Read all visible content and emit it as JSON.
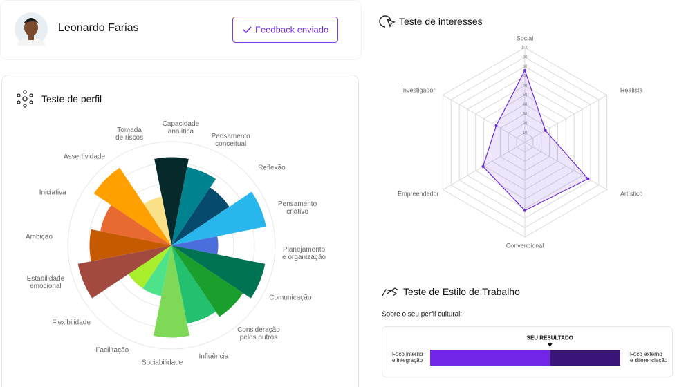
{
  "header": {
    "name": "Leonardo Farias",
    "button": "Feedback enviado"
  },
  "chart_data": [
    {
      "type": "polar-area",
      "title": "Teste de perfil",
      "categories": [
        "Capacidade\nanalítica",
        "Pensamento\nconceitual",
        "Reflexão",
        "Pensamento\ncriativo",
        "Planejamento\ne organização",
        "Comunicação",
        "Consideração\npelos outros",
        "Influência",
        "Sociabilidade",
        "Facilitação",
        "Flexibilidade",
        "Estabilidade\nemocional",
        "Ambição",
        "Iniciativa",
        "Assertividade",
        "Tomada\nde riscos"
      ],
      "values": [
        85,
        77,
        67,
        93,
        45,
        92,
        83,
        77,
        89,
        50,
        50,
        92,
        79,
        70,
        90,
        48
      ],
      "colors": [
        "#062a2b",
        "#00838f",
        "#064a6e",
        "#29b6ec",
        "#4a6fdc",
        "#007352",
        "#1a9e2c",
        "#23c070",
        "#7ed957",
        "#4ee28a",
        "#a8ee2c",
        "#a34a40",
        "#c65a00",
        "#e86a30",
        "#ffa000",
        "#fbe08a"
      ],
      "rlim": [
        0,
        100
      ],
      "rticks": [
        20,
        40,
        60,
        80,
        100
      ]
    },
    {
      "type": "radar",
      "title": "Teste de interesses",
      "categories": [
        "Social",
        "Realista",
        "Artístico",
        "Convencional",
        "Empreendedor",
        "Investigador"
      ],
      "values": [
        76,
        25,
        77,
        72,
        51,
        35
      ],
      "color": "#6d28d9",
      "rlim": [
        0,
        100
      ],
      "rticks": [
        10,
        20,
        30,
        40,
        50,
        60,
        70,
        80,
        90,
        100
      ]
    },
    {
      "type": "slider",
      "title": "Teste de Estilo de Trabalho",
      "subtitle": "Sobre o seu perfil cultural:",
      "marker_label": "SEU RESULTADO",
      "left_label": "Foco interno\ne integração",
      "right_label": "Foco externo\ne diferenciação",
      "value": 63,
      "xlim": [
        0,
        100
      ],
      "colors": [
        "#7126e8",
        "#3a1478"
      ]
    }
  ]
}
